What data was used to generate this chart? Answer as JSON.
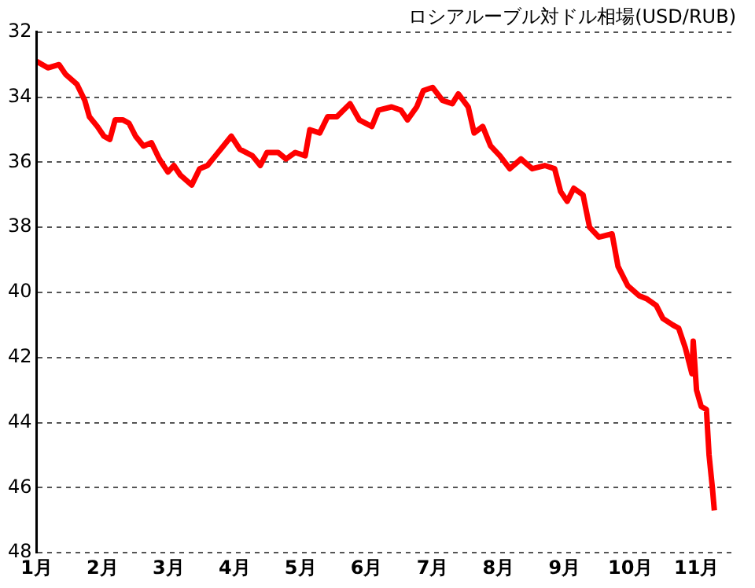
{
  "chart_data": {
    "type": "line",
    "title": "ロシアルーブル対ドル相場(USD/RUB)",
    "x": [
      1.0,
      1.17,
      1.34,
      1.44,
      1.61,
      1.73,
      1.8,
      1.92,
      2.02,
      2.11,
      2.19,
      2.31,
      2.4,
      2.5,
      2.62,
      2.74,
      2.86,
      2.99,
      3.08,
      3.18,
      3.35,
      3.47,
      3.59,
      3.71,
      3.83,
      3.95,
      4.08,
      4.27,
      4.39,
      4.49,
      4.66,
      4.78,
      4.92,
      5.07,
      5.14,
      5.29,
      5.41,
      5.55,
      5.75,
      5.89,
      6.08,
      6.18,
      6.38,
      6.52,
      6.62,
      6.76,
      6.86,
      7.0,
      7.15,
      7.3,
      7.39,
      7.54,
      7.63,
      7.76,
      7.88,
      8.02,
      8.17,
      8.34,
      8.51,
      8.7,
      8.85,
      8.94,
      9.04,
      9.14,
      9.28,
      9.38,
      9.52,
      9.72,
      9.81,
      9.96,
      10.13,
      10.25,
      10.39,
      10.49,
      10.64,
      10.73,
      10.83,
      10.93,
      10.95,
      11.0,
      11.07,
      11.15,
      11.19,
      11.24,
      11.27
    ],
    "series": [
      {
        "color": "#ff0000",
        "values": [
          32.9,
          33.1,
          33.0,
          33.3,
          33.6,
          34.1,
          34.6,
          34.9,
          35.2,
          35.3,
          34.7,
          34.7,
          34.8,
          35.2,
          35.5,
          35.4,
          35.9,
          36.3,
          36.1,
          36.4,
          36.7,
          36.2,
          36.1,
          35.8,
          35.5,
          35.2,
          35.6,
          35.8,
          36.1,
          35.7,
          35.7,
          35.9,
          35.7,
          35.8,
          35.0,
          35.1,
          34.6,
          34.6,
          34.2,
          34.7,
          34.9,
          34.4,
          34.3,
          34.4,
          34.7,
          34.3,
          33.8,
          33.7,
          34.1,
          34.2,
          33.9,
          34.3,
          35.1,
          34.9,
          35.5,
          35.8,
          36.2,
          35.9,
          36.2,
          36.1,
          36.2,
          36.9,
          37.2,
          36.8,
          37.0,
          38.0,
          38.3,
          38.2,
          39.2,
          39.8,
          40.1,
          40.2,
          40.4,
          40.8,
          41.0,
          41.1,
          41.7,
          42.5,
          41.5,
          43.0,
          43.5,
          43.6,
          45.0,
          46.0,
          46.7
        ]
      }
    ],
    "xlim": [
      1,
      11.6
    ],
    "xticks": [
      {
        "value": 1,
        "label": "1月"
      },
      {
        "value": 2,
        "label": "2月"
      },
      {
        "value": 3,
        "label": "3月"
      },
      {
        "value": 4,
        "label": "4月"
      },
      {
        "value": 5,
        "label": "5月"
      },
      {
        "value": 6,
        "label": "6月"
      },
      {
        "value": 7,
        "label": "7月"
      },
      {
        "value": 8,
        "label": "8月"
      },
      {
        "value": 9,
        "label": "9月"
      },
      {
        "value": 10,
        "label": "10月"
      },
      {
        "value": 11,
        "label": "11月"
      }
    ],
    "ylim": [
      48,
      32
    ],
    "yticks": [
      32,
      34,
      36,
      38,
      40,
      42,
      44,
      46,
      48
    ],
    "grid": "y",
    "legend": false,
    "marker": "none",
    "line_style": "solid"
  }
}
